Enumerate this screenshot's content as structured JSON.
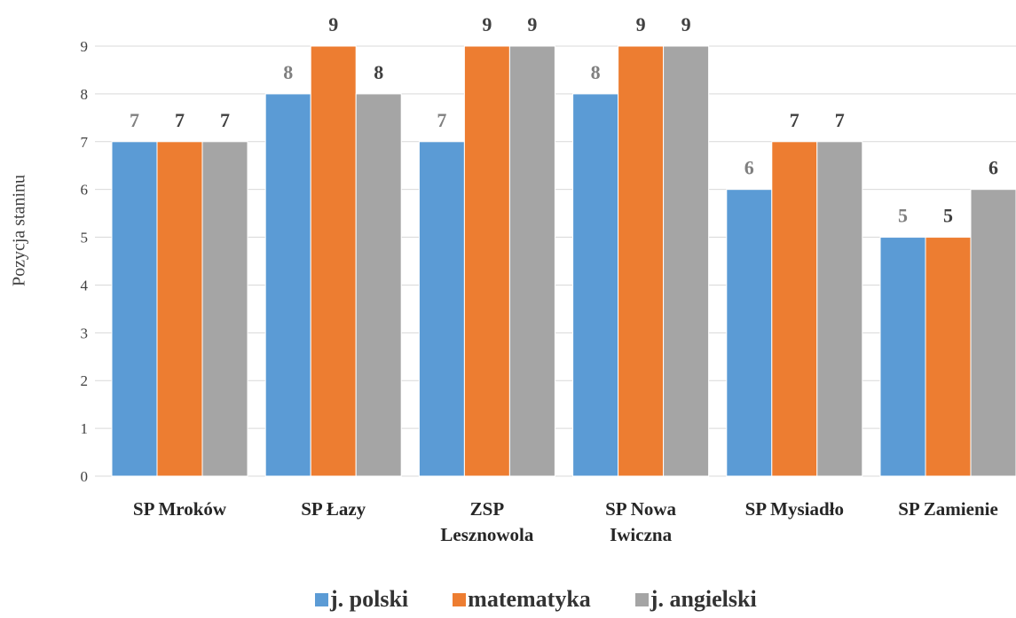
{
  "chart_data": {
    "type": "bar",
    "ylabel": "Pozycja staninu",
    "ylim": [
      0,
      9
    ],
    "yticks": [
      "0",
      "1",
      "2",
      "3",
      "4",
      "5",
      "6",
      "7",
      "8",
      "9"
    ],
    "grid": true,
    "legend_position": "bottom",
    "categories": [
      [
        "SP Mroków"
      ],
      [
        "SP Łazy"
      ],
      [
        "ZSP",
        "Lesznowola"
      ],
      [
        "SP Nowa",
        "Iwiczna"
      ],
      [
        "SP Mysiadło"
      ],
      [
        "SP Zamienie"
      ]
    ],
    "series": [
      {
        "name": "j. polski",
        "color": "#5b9bd5",
        "label_color": "#7f7f7f",
        "values": [
          7,
          8,
          7,
          8,
          6,
          5
        ]
      },
      {
        "name": "matematyka",
        "color": "#ed7d31",
        "label_color": "#404040",
        "values": [
          7,
          9,
          9,
          9,
          7,
          5
        ]
      },
      {
        "name": "j. angielski",
        "color": "#a5a5a5",
        "label_color": "#404040",
        "values": [
          7,
          8,
          9,
          9,
          7,
          6
        ]
      }
    ]
  }
}
